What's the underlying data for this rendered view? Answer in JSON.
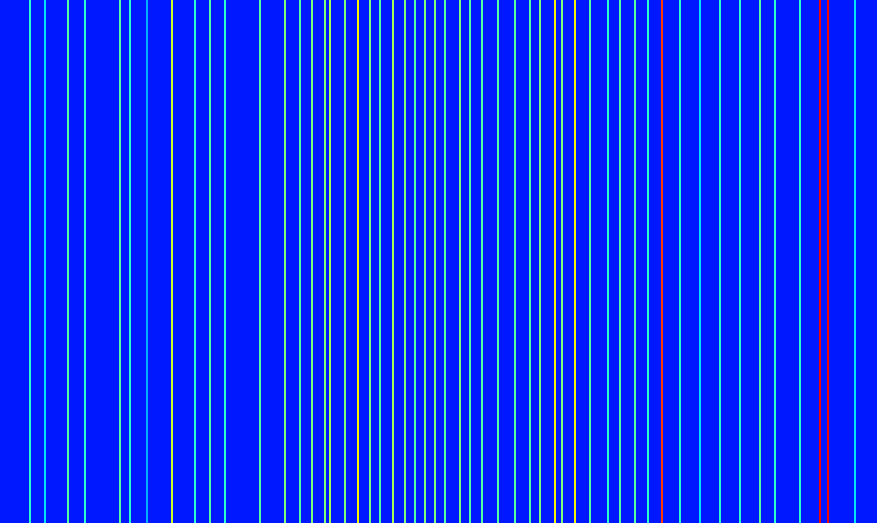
{
  "chart_data": {
    "type": "spectrogram",
    "x": [
      30,
      45,
      68,
      85,
      120,
      130,
      147,
      172,
      195,
      210,
      225,
      260,
      285,
      300,
      312,
      325,
      330,
      345,
      358,
      370,
      380,
      393,
      405,
      415,
      425,
      435,
      445,
      460,
      470,
      482,
      498,
      515,
      530,
      540,
      555,
      562,
      575,
      590,
      608,
      620,
      635,
      648,
      662,
      680,
      700,
      720,
      740,
      760,
      775,
      800,
      820,
      828,
      855
    ],
    "values": [
      0.4,
      0.35,
      0.45,
      0.4,
      0.45,
      0.4,
      0.3,
      0.6,
      0.4,
      0.45,
      0.4,
      0.45,
      0.5,
      0.45,
      0.5,
      0.5,
      0.55,
      0.5,
      0.65,
      0.5,
      0.45,
      0.55,
      0.5,
      0.45,
      0.5,
      0.5,
      0.45,
      0.5,
      0.45,
      0.45,
      0.45,
      0.45,
      0.45,
      0.5,
      0.65,
      0.5,
      0.65,
      0.45,
      0.4,
      0.45,
      0.45,
      0.4,
      0.85,
      0.4,
      0.35,
      0.4,
      0.4,
      0.45,
      0.4,
      0.4,
      0.9,
      0.9,
      0.35
    ],
    "background": 0.15,
    "xlim": [
      0,
      878
    ],
    "ylim": [
      0,
      523
    ],
    "color_range": [
      0,
      1
    ],
    "tick_labels": false
  }
}
